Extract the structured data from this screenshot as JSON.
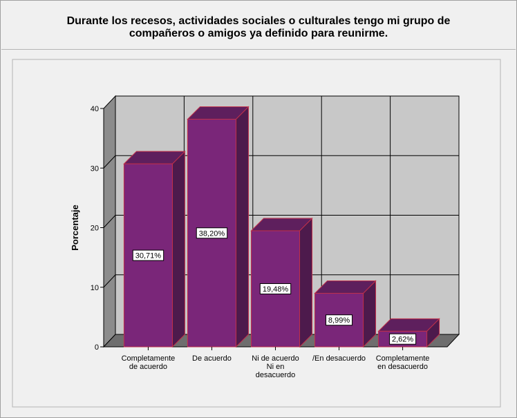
{
  "title_lines": [
    "Durante los recesos, actividades sociales o culturales tengo mi grupo de",
    "compañeros o amigos ya definido para reunirme."
  ],
  "chart_data": {
    "type": "bar",
    "title": "Durante los recesos, actividades sociales o culturales tengo mi grupo de compañeros o amigos ya definido para reunirme.",
    "xlabel": "",
    "ylabel": "Porcentaje",
    "ylim": [
      0,
      40
    ],
    "yticks": [
      0,
      10,
      20,
      30,
      40
    ],
    "grid": true,
    "categories": [
      [
        "Completamente",
        "de acuerdo"
      ],
      [
        "De acuerdo"
      ],
      [
        "Ni de acuerdo",
        "Ni en",
        "desacuerdo"
      ],
      [
        "/En desacuerdo"
      ],
      [
        "Completamente",
        "en desacuerdo"
      ]
    ],
    "values": [
      30.71,
      38.2,
      19.48,
      8.99,
      2.62
    ],
    "data_labels": [
      "30,71%",
      "38,20%",
      "19,48%",
      "8,99%",
      "2,62%"
    ],
    "colors": {
      "bar_front": "#7a2679",
      "bar_side": "#4d1a4c",
      "bar_top": "#5e1f5d",
      "bar_edge": "#c0304a",
      "plot_back": "#c8c8c8",
      "plot_wall": "#8c8c8c",
      "plot_floor": "#6e6e6e",
      "chart_area": "#f0f0f0"
    }
  }
}
